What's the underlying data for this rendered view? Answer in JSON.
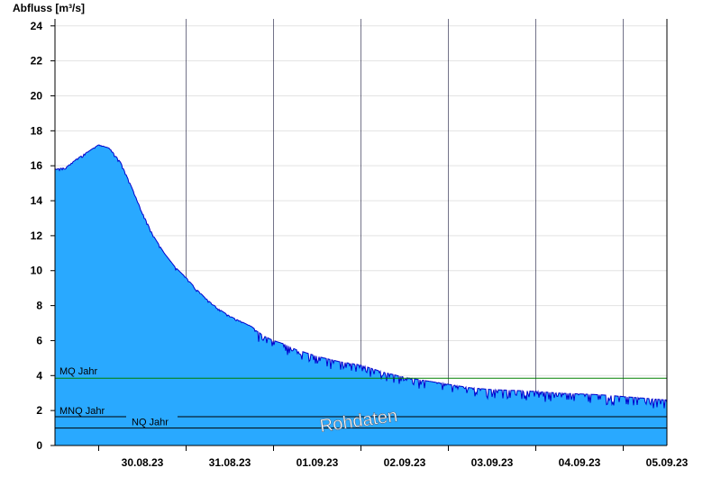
{
  "chart_data": {
    "type": "area",
    "ylabel": "Abfluss [m³/s]",
    "ylim": [
      0,
      24.4
    ],
    "y_ticks": [
      0,
      2,
      4,
      6,
      8,
      10,
      12,
      14,
      16,
      18,
      20,
      22,
      24
    ],
    "x_range_days": [
      "29.08.23 12:00",
      "05.09.23 12:00"
    ],
    "x_tick_labels": [
      "30.08.23",
      "31.08.23",
      "01.09.23",
      "02.09.23",
      "03.09.23",
      "04.09.23",
      "05.09.23"
    ],
    "grid": true,
    "series": [
      {
        "color": "#29a9ff",
        "line_color": "#0000cc",
        "x": [
          "29.08.23 12:00",
          "29.08.23 15:00",
          "29.08.23 18:00",
          "29.08.23 21:00",
          "30.08.23 00:00",
          "30.08.23 03:00",
          "30.08.23 06:00",
          "30.08.23 09:00",
          "30.08.23 12:00",
          "30.08.23 15:00",
          "30.08.23 18:00",
          "30.08.23 21:00",
          "31.08.23 00:00",
          "31.08.23 03:00",
          "31.08.23 06:00",
          "31.08.23 09:00",
          "31.08.23 12:00",
          "31.08.23 15:00",
          "31.08.23 18:00",
          "31.08.23 21:00",
          "01.09.23 00:00",
          "01.09.23 03:00",
          "01.09.23 06:00",
          "01.09.23 09:00",
          "01.09.23 12:00",
          "01.09.23 18:00",
          "02.09.23 00:00",
          "02.09.23 06:00",
          "02.09.23 12:00",
          "02.09.23 18:00",
          "03.09.23 00:00",
          "03.09.23 06:00",
          "03.09.23 12:00",
          "03.09.23 18:00",
          "04.09.23 00:00",
          "04.09.23 06:00",
          "04.09.23 12:00",
          "04.09.23 18:00",
          "05.09.23 00:00",
          "05.09.23 06:00",
          "05.09.23 12:00"
        ],
        "values": [
          15.8,
          15.9,
          16.4,
          16.8,
          17.2,
          17.0,
          16.2,
          14.8,
          13.3,
          12.0,
          11.0,
          10.2,
          9.6,
          8.9,
          8.3,
          7.8,
          7.4,
          7.1,
          6.8,
          6.3,
          6.0,
          5.8,
          5.5,
          5.3,
          5.1,
          4.8,
          4.6,
          4.2,
          3.9,
          3.7,
          3.5,
          3.3,
          3.2,
          3.15,
          3.1,
          3.0,
          2.95,
          2.9,
          2.8,
          2.7,
          2.6
        ]
      }
    ],
    "reference_lines": [
      {
        "label": "MQ Jahr",
        "value": 3.85,
        "color": "#008000"
      },
      {
        "label": "MNQ Jahr",
        "value": 1.65,
        "color": "#000000"
      },
      {
        "label": "NQ Jahr",
        "value": 1.0,
        "color": "#000000"
      }
    ],
    "annotation": "Rohdaten"
  }
}
